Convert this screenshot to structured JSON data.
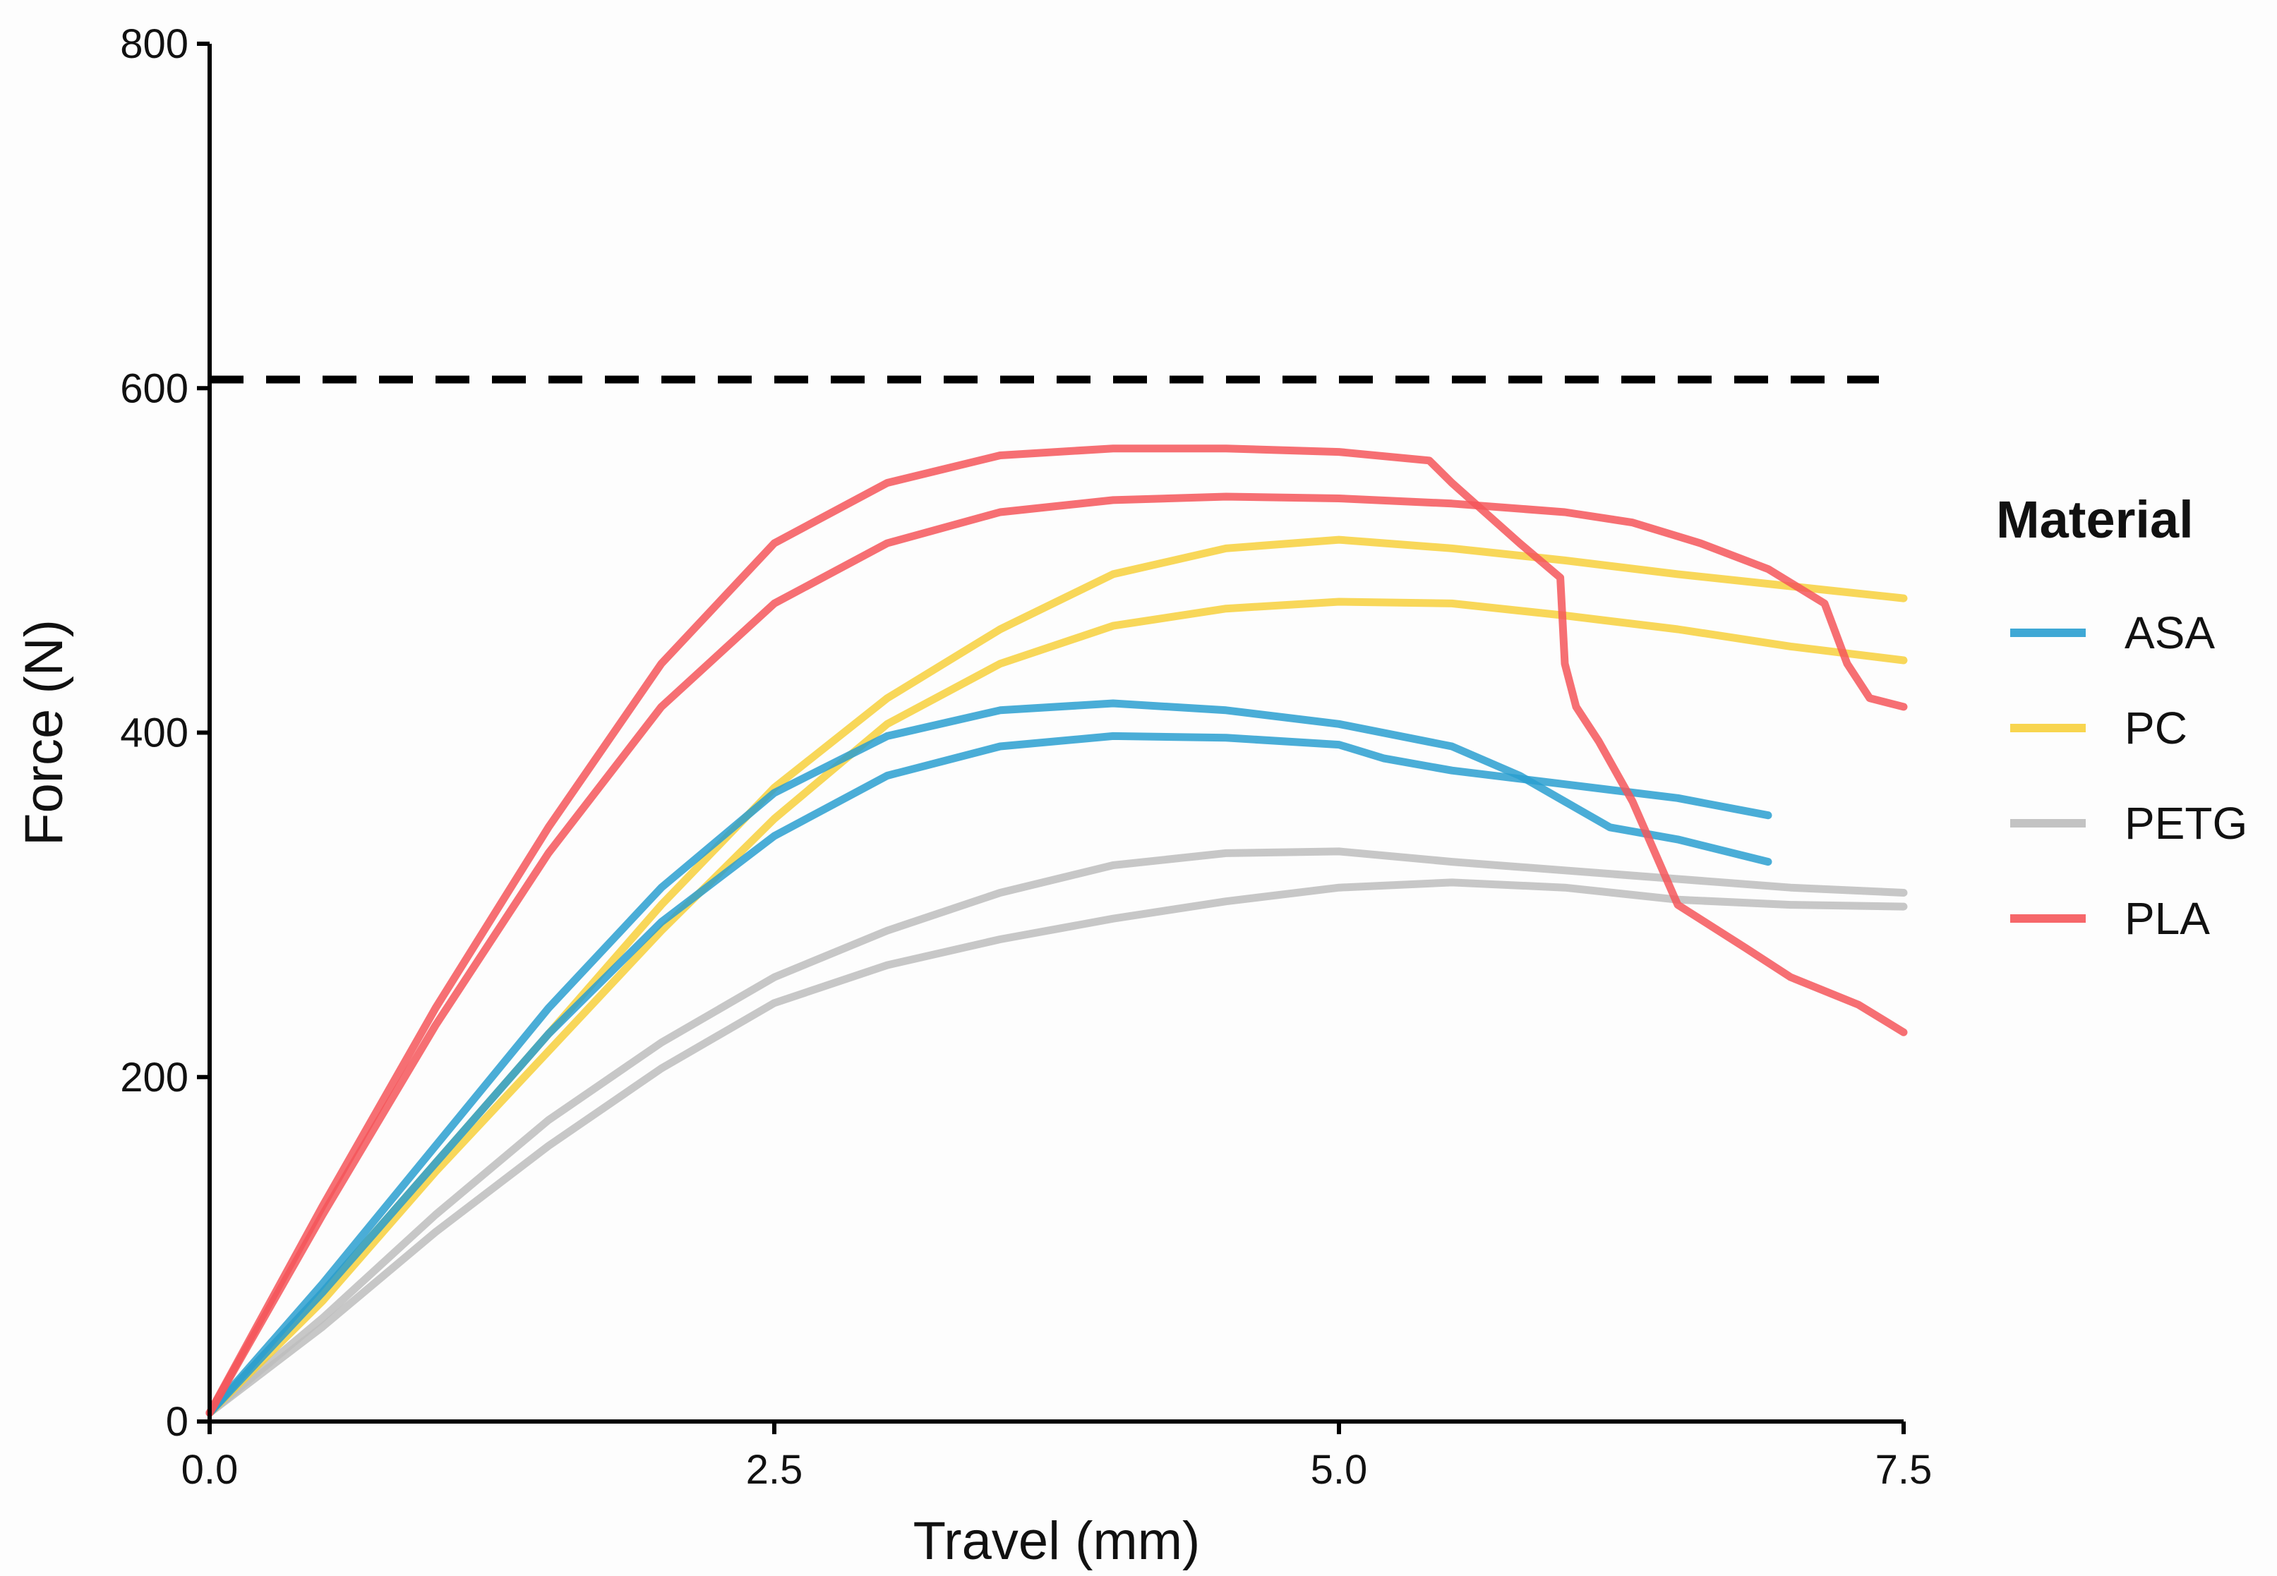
{
  "chart_data": {
    "type": "line",
    "xlabel": "Travel (mm)",
    "ylabel": "Force (N)",
    "xlim": [
      0,
      7.5
    ],
    "ylim": [
      0,
      800
    ],
    "xticks": [
      0,
      2.5,
      5,
      7.5
    ],
    "xtick_labels": [
      "0.0",
      "2.5",
      "5.0",
      "7.5"
    ],
    "yticks": [
      0,
      200,
      400,
      600,
      800
    ],
    "ytick_labels": [
      "0",
      "200",
      "400",
      "600",
      "800"
    ],
    "grid": false,
    "legend": {
      "title": "Material",
      "placement": "right",
      "entries": [
        {
          "label": "ASA",
          "color": "#2a9fd0"
        },
        {
          "label": "PC",
          "color": "#f7d03c"
        },
        {
          "label": "PETG",
          "color": "#bdbdbd"
        },
        {
          "label": "PLA",
          "color": "#f5565a"
        }
      ]
    },
    "reference_line": {
      "y": 605,
      "style": "dashed",
      "color": "#000000"
    },
    "series": [
      {
        "name": "ASA",
        "color": "#2a9fd0",
        "x": [
          0,
          0.5,
          1,
          1.5,
          2,
          2.5,
          3,
          3.5,
          4,
          4.5,
          5,
          5.5,
          5.8,
          6,
          6.2,
          6.5,
          6.9
        ],
        "y": [
          5,
          80,
          160,
          240,
          310,
          365,
          398,
          413,
          417,
          413,
          405,
          392,
          375,
          360,
          345,
          338,
          325
        ]
      },
      {
        "name": "ASA",
        "color": "#2a9fd0",
        "x": [
          0,
          0.5,
          1,
          1.5,
          2,
          2.5,
          3,
          3.5,
          4,
          4.5,
          5,
          5.2,
          5.5,
          6,
          6.5,
          6.9
        ],
        "y": [
          5,
          75,
          150,
          225,
          290,
          340,
          375,
          392,
          398,
          397,
          393,
          385,
          378,
          370,
          362,
          352
        ]
      },
      {
        "name": "PC",
        "color": "#f7d03c",
        "x": [
          0,
          0.5,
          1,
          1.5,
          2,
          2.5,
          3,
          3.5,
          4,
          4.5,
          5,
          5.5,
          6,
          6.5,
          7,
          7.5
        ],
        "y": [
          5,
          75,
          150,
          225,
          300,
          368,
          420,
          460,
          492,
          507,
          512,
          507,
          500,
          492,
          485,
          478
        ]
      },
      {
        "name": "PC",
        "color": "#f7d03c",
        "x": [
          0,
          0.5,
          1,
          1.5,
          2,
          2.5,
          3,
          3.5,
          4,
          4.5,
          5,
          5.5,
          6,
          6.5,
          7,
          7.5
        ],
        "y": [
          5,
          70,
          145,
          215,
          285,
          350,
          405,
          440,
          462,
          472,
          476,
          475,
          468,
          460,
          450,
          442
        ]
      },
      {
        "name": "PETG",
        "color": "#bdbdbd",
        "x": [
          0,
          0.5,
          1,
          1.5,
          2,
          2.5,
          3,
          3.5,
          4,
          4.5,
          5,
          5.5,
          6,
          6.5,
          7,
          7.5
        ],
        "y": [
          5,
          60,
          120,
          175,
          220,
          258,
          285,
          307,
          323,
          330,
          331,
          325,
          320,
          315,
          310,
          307
        ]
      },
      {
        "name": "PETG",
        "color": "#bdbdbd",
        "x": [
          0,
          0.5,
          1,
          1.5,
          2,
          2.5,
          3,
          3.5,
          4,
          4.5,
          5,
          5.5,
          6,
          6.5,
          7,
          7.5
        ],
        "y": [
          5,
          55,
          110,
          160,
          205,
          243,
          265,
          280,
          292,
          302,
          310,
          313,
          310,
          303,
          300,
          299
        ]
      },
      {
        "name": "PLA",
        "color": "#f5565a",
        "x": [
          0,
          0.5,
          1,
          1.5,
          2,
          2.5,
          3,
          3.5,
          4,
          4.5,
          5,
          5.4,
          5.5,
          5.8,
          5.98,
          6.0,
          6.05,
          6.15,
          6.3,
          6.5,
          6.8,
          7.0,
          7.3,
          7.5
        ],
        "y": [
          5,
          125,
          240,
          345,
          440,
          510,
          545,
          561,
          565,
          565,
          563,
          558,
          545,
          510,
          490,
          440,
          415,
          395,
          360,
          300,
          275,
          258,
          242,
          226
        ]
      },
      {
        "name": "PLA",
        "color": "#f5565a",
        "x": [
          0,
          0.5,
          1,
          1.5,
          2,
          2.5,
          3,
          3.5,
          4,
          4.5,
          5,
          5.5,
          6,
          6.3,
          6.6,
          6.9,
          7.15,
          7.25,
          7.35,
          7.5
        ],
        "y": [
          5,
          120,
          230,
          330,
          415,
          475,
          510,
          528,
          535,
          537,
          536,
          533,
          528,
          522,
          510,
          495,
          475,
          440,
          420,
          415
        ]
      }
    ]
  }
}
